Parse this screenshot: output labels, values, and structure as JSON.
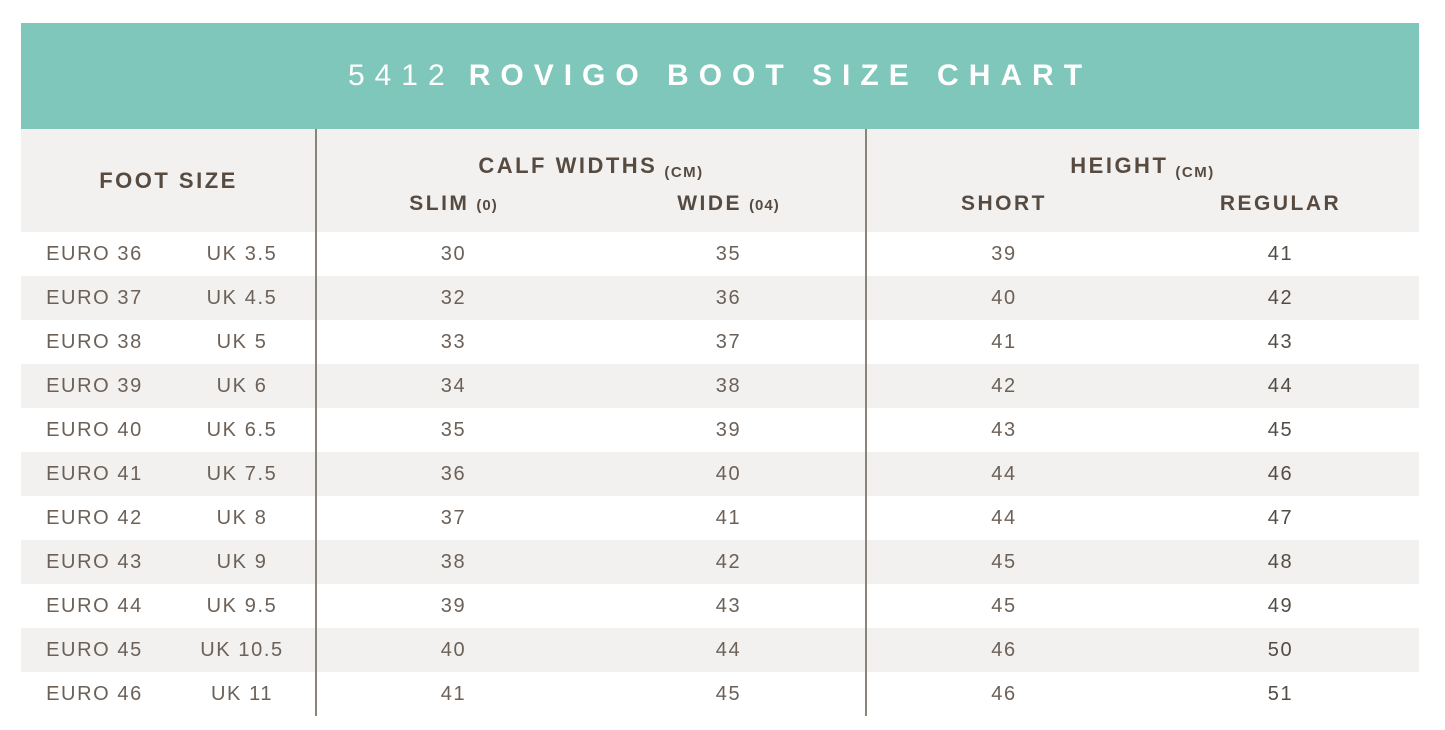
{
  "banner": {
    "code": "5412",
    "title": "ROVIGO BOOT SIZE CHART",
    "bg_color": "#7fc7ba",
    "text_color": "#ffffff"
  },
  "table": {
    "header": {
      "foot_size": "FOOT SIZE",
      "calf_group": {
        "label": "CALF WIDTHS",
        "unit": "(CM)",
        "sub": [
          {
            "label": "SLIM",
            "suffix": "(0)"
          },
          {
            "label": "WIDE",
            "suffix": "(04)"
          }
        ]
      },
      "height_group": {
        "label": "HEIGHT",
        "unit": "(CM)",
        "sub": [
          {
            "label": "SHORT",
            "suffix": ""
          },
          {
            "label": "REGULAR",
            "suffix": ""
          }
        ]
      }
    },
    "rows": [
      {
        "euro": "EURO 36",
        "uk": "UK 3.5",
        "slim": "30",
        "wide": "35",
        "short": "39",
        "regular": "41"
      },
      {
        "euro": "EURO 37",
        "uk": "UK 4.5",
        "slim": "32",
        "wide": "36",
        "short": "40",
        "regular": "42"
      },
      {
        "euro": "EURO 38",
        "uk": "UK 5",
        "slim": "33",
        "wide": "37",
        "short": "41",
        "regular": "43"
      },
      {
        "euro": "EURO 39",
        "uk": "UK 6",
        "slim": "34",
        "wide": "38",
        "short": "42",
        "regular": "44"
      },
      {
        "euro": "EURO 40",
        "uk": "UK 6.5",
        "slim": "35",
        "wide": "39",
        "short": "43",
        "regular": "45"
      },
      {
        "euro": "EURO 41",
        "uk": "UK 7.5",
        "slim": "36",
        "wide": "40",
        "short": "44",
        "regular": "46"
      },
      {
        "euro": "EURO 42",
        "uk": "UK 8",
        "slim": "37",
        "wide": "41",
        "short": "44",
        "regular": "47"
      },
      {
        "euro": "EURO 43",
        "uk": "UK 9",
        "slim": "38",
        "wide": "42",
        "short": "45",
        "regular": "48"
      },
      {
        "euro": "EURO 44",
        "uk": "UK 9.5",
        "slim": "39",
        "wide": "43",
        "short": "45",
        "regular": "49"
      },
      {
        "euro": "EURO 45",
        "uk": "UK 10.5",
        "slim": "40",
        "wide": "44",
        "short": "46",
        "regular": "50"
      },
      {
        "euro": "EURO 46",
        "uk": "UK 11",
        "slim": "41",
        "wide": "45",
        "short": "46",
        "regular": "51"
      }
    ],
    "stripe_color": "#f2f1ef",
    "divider_color": "#8b8478",
    "header_text_color": "#574b41",
    "data_text_color": "#6b6158"
  },
  "chart_data": {
    "type": "table",
    "title": "5412 ROVIGO BOOT SIZE CHART",
    "columns": [
      "EURO SIZE",
      "UK SIZE",
      "CALF WIDTH SLIM (0) CM",
      "CALF WIDTH WIDE (04) CM",
      "HEIGHT SHORT CM",
      "HEIGHT REGULAR CM"
    ],
    "rows": [
      [
        "EURO 36",
        "UK 3.5",
        30,
        35,
        39,
        41
      ],
      [
        "EURO 37",
        "UK 4.5",
        32,
        36,
        40,
        42
      ],
      [
        "EURO 38",
        "UK 5",
        33,
        37,
        41,
        43
      ],
      [
        "EURO 39",
        "UK 6",
        34,
        38,
        42,
        44
      ],
      [
        "EURO 40",
        "UK 6.5",
        35,
        39,
        43,
        45
      ],
      [
        "EURO 41",
        "UK 7.5",
        36,
        40,
        44,
        46
      ],
      [
        "EURO 42",
        "UK 8",
        37,
        41,
        44,
        47
      ],
      [
        "EURO 43",
        "UK 9",
        38,
        42,
        45,
        48
      ],
      [
        "EURO 44",
        "UK 9.5",
        39,
        43,
        45,
        49
      ],
      [
        "EURO 45",
        "UK 10.5",
        40,
        44,
        46,
        50
      ],
      [
        "EURO 46",
        "UK 11",
        41,
        45,
        46,
        51
      ]
    ]
  }
}
